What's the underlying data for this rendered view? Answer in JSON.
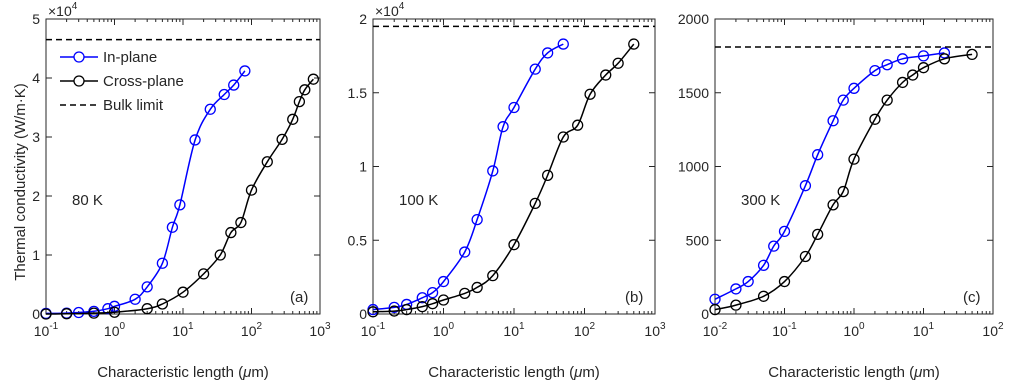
{
  "figure": {
    "shared_ylabel": "Thermal conductivity (W/m·K)",
    "shared_xlabel": "Characteristic length (μm)"
  },
  "chart_data": [
    {
      "type": "line",
      "panel_label": "(a)",
      "annotation": "80 K",
      "xscale": "log",
      "xlim": [
        0.1,
        1000
      ],
      "ylim": [
        0,
        50000
      ],
      "y_multiplier": "×10^4",
      "xticks": [
        "10^-1",
        "10^0",
        "10^1",
        "10^2",
        "10^3"
      ],
      "yticks": [
        "0",
        "1",
        "2",
        "3",
        "4",
        "5"
      ],
      "xlabel": "Characteristic length (μm)",
      "ylabel": "Thermal conductivity (W/m·K)",
      "legend_position": "top-left",
      "series": [
        {
          "name": "In-plane",
          "color": "#0000ff",
          "marker": "circle",
          "x": [
            0.1,
            0.2,
            0.3,
            0.5,
            0.8,
            1,
            2,
            3,
            5,
            7,
            9,
            15,
            25,
            40,
            55,
            80
          ],
          "y": [
            100,
            150,
            250,
            450,
            900,
            1300,
            2500,
            4600,
            8600,
            14700,
            18500,
            29500,
            34700,
            37200,
            38800,
            41200
          ]
        },
        {
          "name": "Cross-plane",
          "color": "#000000",
          "marker": "circle",
          "x": [
            0.1,
            0.2,
            0.5,
            1,
            3,
            5,
            10,
            20,
            35,
            50,
            70,
            100,
            170,
            280,
            400,
            500,
            600,
            800
          ],
          "y": [
            0,
            50,
            150,
            300,
            900,
            1700,
            3700,
            6800,
            10000,
            13800,
            15500,
            21000,
            25800,
            29600,
            33000,
            36000,
            38000,
            39800
          ]
        },
        {
          "name": "Bulk limit",
          "color": "#000000",
          "style": "dashed",
          "y_constant": 46500
        }
      ]
    },
    {
      "type": "line",
      "panel_label": "(b)",
      "annotation": "100 K",
      "xscale": "log",
      "xlim": [
        0.1,
        1000
      ],
      "ylim": [
        0,
        20000
      ],
      "y_multiplier": "×10^4",
      "xticks": [
        "10^-1",
        "10^0",
        "10^1",
        "10^2",
        "10^3"
      ],
      "yticks": [
        "0",
        "0.5",
        "1",
        "1.5",
        "2"
      ],
      "series": [
        {
          "name": "In-plane",
          "color": "#0000ff",
          "marker": "circle",
          "x": [
            0.1,
            0.2,
            0.3,
            0.5,
            0.7,
            1,
            2,
            3,
            5,
            7,
            10,
            20,
            30,
            50
          ],
          "y": [
            300,
            450,
            650,
            1100,
            1450,
            2200,
            4200,
            6400,
            9700,
            12700,
            14000,
            16600,
            17700,
            18300
          ]
        },
        {
          "name": "Cross-plane",
          "color": "#000000",
          "marker": "circle",
          "x": [
            0.1,
            0.2,
            0.3,
            0.5,
            0.7,
            1,
            2,
            3,
            5,
            10,
            20,
            30,
            50,
            80,
            120,
            200,
            300,
            500
          ],
          "y": [
            150,
            200,
            300,
            500,
            700,
            950,
            1400,
            1800,
            2600,
            4700,
            7500,
            9400,
            12000,
            12800,
            14900,
            16200,
            17000,
            18300
          ]
        },
        {
          "name": "Bulk limit",
          "color": "#000000",
          "style": "dashed",
          "y_constant": 19500
        }
      ]
    },
    {
      "type": "line",
      "panel_label": "(c)",
      "annotation": "300 K",
      "xscale": "log",
      "xlim": [
        0.01,
        100
      ],
      "ylim": [
        0,
        2000
      ],
      "xticks": [
        "10^-2",
        "10^-1",
        "10^0",
        "10^1",
        "10^2"
      ],
      "yticks": [
        "0",
        "500",
        "1000",
        "1500",
        "2000"
      ],
      "series": [
        {
          "name": "In-plane",
          "color": "#0000ff",
          "marker": "circle",
          "x": [
            0.01,
            0.02,
            0.03,
            0.05,
            0.07,
            0.1,
            0.2,
            0.3,
            0.5,
            0.7,
            1,
            2,
            3,
            5,
            10,
            20
          ],
          "y": [
            100,
            170,
            220,
            330,
            460,
            560,
            870,
            1080,
            1310,
            1450,
            1530,
            1650,
            1690,
            1730,
            1750,
            1770
          ]
        },
        {
          "name": "Cross-plane",
          "color": "#000000",
          "marker": "circle",
          "x": [
            0.01,
            0.02,
            0.05,
            0.1,
            0.2,
            0.3,
            0.5,
            0.7,
            1,
            2,
            3,
            5,
            7,
            10,
            20,
            50
          ],
          "y": [
            30,
            60,
            120,
            220,
            390,
            540,
            740,
            830,
            1050,
            1320,
            1450,
            1570,
            1620,
            1670,
            1730,
            1760
          ]
        },
        {
          "name": "Bulk limit",
          "color": "#000000",
          "style": "dashed",
          "y_constant": 1810
        }
      ]
    }
  ]
}
